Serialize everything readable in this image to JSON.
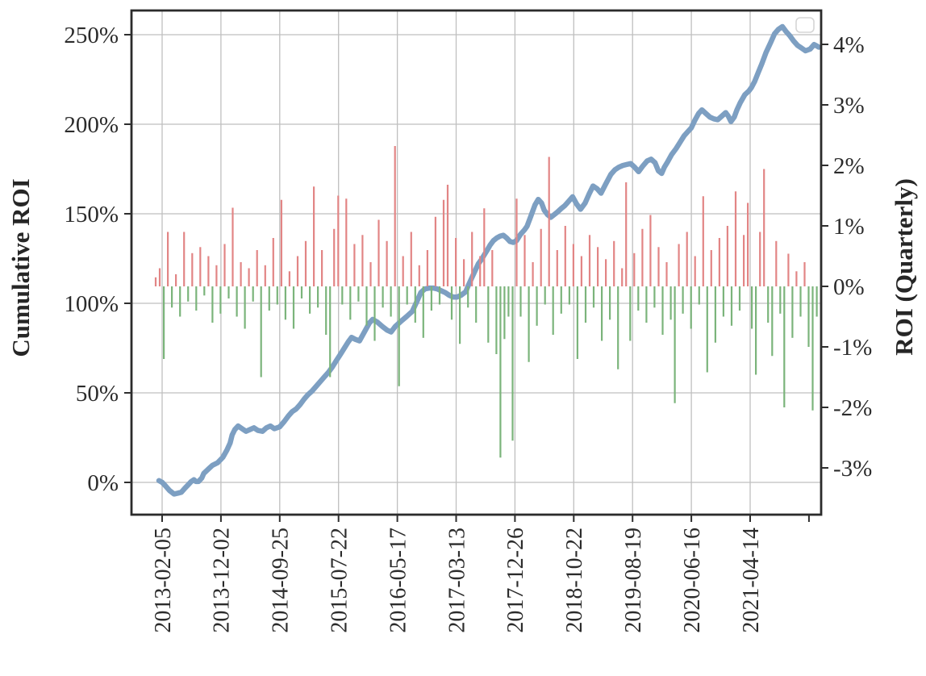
{
  "figure": {
    "background": "#ffffff",
    "left_axis": {
      "title": "Cumulative ROI",
      "tick_labels": [
        "250%",
        "200%",
        "150%",
        "100%",
        "50%",
        "0%"
      ]
    },
    "right_axis": {
      "title": "ROI (Quarterly)",
      "tick_labels": [
        "4%",
        "3%",
        "2%",
        "1%",
        "0%",
        "-1%",
        "-2%",
        "-3%"
      ]
    },
    "x_axis": {
      "tick_labels": [
        "2013-02-05",
        "2013-12-02",
        "2014-09-25",
        "2015-07-22",
        "2016-05-17",
        "2017-03-13",
        "2017-12-26",
        "2018-10-22",
        "2019-08-19",
        "2020-06-16",
        "2021-04-14",
        ""
      ]
    },
    "legend": {
      "empty": true
    }
  },
  "chart_data": {
    "type": "line+bar",
    "title": "",
    "x_tick_labels": [
      "2013-02-05",
      "2013-12-02",
      "2014-09-25",
      "2015-07-22",
      "2016-05-17",
      "2017-03-13",
      "2017-12-26",
      "2018-10-22",
      "2019-08-19",
      "2020-06-16",
      "2021-04-14",
      ""
    ],
    "x_domain_approx": {
      "start": "2013-01-20",
      "end": "2022-03-20"
    },
    "grid": true,
    "legend_position": "upper right (empty box, no entries)",
    "left_axis": {
      "label": "Cumulative ROI",
      "unit": "%",
      "ticks": [
        250,
        200,
        150,
        100,
        50,
        0
      ],
      "ylim_est": [
        -18,
        263
      ]
    },
    "right_axis": {
      "label": "ROI (Quarterly)",
      "unit": "%",
      "ticks": [
        4,
        3,
        2,
        1,
        0,
        -1,
        -2,
        -3
      ],
      "ylim_est": [
        -3.8,
        4.6
      ]
    },
    "series": [
      {
        "name": "Cumulative ROI",
        "type": "line",
        "axis": "left",
        "color": "#7d9fc2",
        "points_t_pct": [
          [
            0,
            1
          ],
          [
            0.005,
            0
          ],
          [
            0.01,
            -2
          ],
          [
            0.016,
            -4.5
          ],
          [
            0.023,
            -6.5
          ],
          [
            0.029,
            -6
          ],
          [
            0.034,
            -5.5
          ],
          [
            0.04,
            -3
          ],
          [
            0.044,
            -1.5
          ],
          [
            0.049,
            0.5
          ],
          [
            0.053,
            1.5
          ],
          [
            0.056,
            0.5
          ],
          [
            0.06,
            0.5
          ],
          [
            0.065,
            2.5
          ],
          [
            0.068,
            5
          ],
          [
            0.075,
            7.5
          ],
          [
            0.081,
            9.5
          ],
          [
            0.089,
            11
          ],
          [
            0.097,
            14
          ],
          [
            0.103,
            18
          ],
          [
            0.108,
            22
          ],
          [
            0.111,
            26.5
          ],
          [
            0.115,
            29.5
          ],
          [
            0.12,
            31.5
          ],
          [
            0.126,
            30
          ],
          [
            0.132,
            28.5
          ],
          [
            0.138,
            29.5
          ],
          [
            0.144,
            30.5
          ],
          [
            0.15,
            29
          ],
          [
            0.157,
            28.5
          ],
          [
            0.163,
            30.5
          ],
          [
            0.169,
            31.5
          ],
          [
            0.175,
            30
          ],
          [
            0.183,
            31
          ],
          [
            0.19,
            34
          ],
          [
            0.196,
            37
          ],
          [
            0.202,
            39.5
          ],
          [
            0.208,
            41
          ],
          [
            0.214,
            43.5
          ],
          [
            0.22,
            46.5
          ],
          [
            0.226,
            49
          ],
          [
            0.232,
            51
          ],
          [
            0.238,
            53.5
          ],
          [
            0.245,
            56.5
          ],
          [
            0.251,
            59
          ],
          [
            0.257,
            61.5
          ],
          [
            0.263,
            64.5
          ],
          [
            0.269,
            68
          ],
          [
            0.275,
            71.5
          ],
          [
            0.281,
            75
          ],
          [
            0.287,
            78.5
          ],
          [
            0.292,
            81
          ],
          [
            0.297,
            80
          ],
          [
            0.304,
            79
          ],
          [
            0.313,
            85
          ],
          [
            0.319,
            89
          ],
          [
            0.324,
            91
          ],
          [
            0.331,
            89.5
          ],
          [
            0.339,
            87
          ],
          [
            0.346,
            85
          ],
          [
            0.352,
            84
          ],
          [
            0.358,
            87
          ],
          [
            0.367,
            90
          ],
          [
            0.375,
            92.5
          ],
          [
            0.384,
            95.5
          ],
          [
            0.391,
            101
          ],
          [
            0.397,
            106
          ],
          [
            0.403,
            108
          ],
          [
            0.41,
            108.5
          ],
          [
            0.416,
            108.5
          ],
          [
            0.422,
            108
          ],
          [
            0.428,
            107
          ],
          [
            0.434,
            106
          ],
          [
            0.44,
            104.5
          ],
          [
            0.446,
            103.5
          ],
          [
            0.452,
            103.5
          ],
          [
            0.458,
            104.5
          ],
          [
            0.465,
            106.5
          ],
          [
            0.469,
            110
          ],
          [
            0.474,
            114
          ],
          [
            0.479,
            118
          ],
          [
            0.484,
            122
          ],
          [
            0.489,
            124.5
          ],
          [
            0.493,
            127
          ],
          [
            0.498,
            130
          ],
          [
            0.502,
            132.5
          ],
          [
            0.507,
            135
          ],
          [
            0.512,
            136.5
          ],
          [
            0.517,
            137.5
          ],
          [
            0.522,
            138
          ],
          [
            0.527,
            136.5
          ],
          [
            0.532,
            134.5
          ],
          [
            0.537,
            134
          ],
          [
            0.542,
            135
          ],
          [
            0.548,
            138.5
          ],
          [
            0.554,
            141
          ],
          [
            0.558,
            143
          ],
          [
            0.564,
            149
          ],
          [
            0.57,
            155
          ],
          [
            0.575,
            158
          ],
          [
            0.58,
            156
          ],
          [
            0.584,
            152
          ],
          [
            0.589,
            149.5
          ],
          [
            0.594,
            148
          ],
          [
            0.599,
            149.5
          ],
          [
            0.604,
            151
          ],
          [
            0.61,
            153
          ],
          [
            0.615,
            154.5
          ],
          [
            0.621,
            157
          ],
          [
            0.627,
            159.5
          ],
          [
            0.633,
            155.5
          ],
          [
            0.639,
            152.5
          ],
          [
            0.646,
            156
          ],
          [
            0.652,
            161
          ],
          [
            0.658,
            165.5
          ],
          [
            0.664,
            164
          ],
          [
            0.67,
            161.5
          ],
          [
            0.677,
            166.5
          ],
          [
            0.685,
            172
          ],
          [
            0.691,
            174.5
          ],
          [
            0.697,
            176
          ],
          [
            0.703,
            177
          ],
          [
            0.709,
            177.5
          ],
          [
            0.715,
            178
          ],
          [
            0.721,
            176
          ],
          [
            0.727,
            173.5
          ],
          [
            0.733,
            176.5
          ],
          [
            0.74,
            179.5
          ],
          [
            0.746,
            180.5
          ],
          [
            0.752,
            178.5
          ],
          [
            0.757,
            174
          ],
          [
            0.762,
            172.5
          ],
          [
            0.766,
            176
          ],
          [
            0.771,
            179
          ],
          [
            0.777,
            183
          ],
          [
            0.784,
            186.5
          ],
          [
            0.79,
            190
          ],
          [
            0.796,
            193.5
          ],
          [
            0.802,
            196
          ],
          [
            0.807,
            198
          ],
          [
            0.812,
            202
          ],
          [
            0.818,
            206
          ],
          [
            0.823,
            208
          ],
          [
            0.829,
            206
          ],
          [
            0.835,
            204
          ],
          [
            0.841,
            203
          ],
          [
            0.847,
            202.5
          ],
          [
            0.853,
            204.5
          ],
          [
            0.859,
            206.5
          ],
          [
            0.863,
            204.5
          ],
          [
            0.867,
            201.5
          ],
          [
            0.872,
            204
          ],
          [
            0.876,
            208
          ],
          [
            0.881,
            212
          ],
          [
            0.888,
            216.5
          ],
          [
            0.894,
            218.5
          ],
          [
            0.898,
            220.5
          ],
          [
            0.903,
            224
          ],
          [
            0.908,
            228.5
          ],
          [
            0.914,
            234
          ],
          [
            0.92,
            240
          ],
          [
            0.927,
            245.5
          ],
          [
            0.933,
            250.5
          ],
          [
            0.939,
            253
          ],
          [
            0.945,
            254.5
          ],
          [
            0.95,
            252
          ],
          [
            0.956,
            249.5
          ],
          [
            0.962,
            246.5
          ],
          [
            0.968,
            244
          ],
          [
            0.974,
            242.5
          ],
          [
            0.98,
            241
          ],
          [
            0.987,
            242
          ],
          [
            0.993,
            244.5
          ],
          [
            0.998,
            243.5
          ],
          [
            1,
            243
          ]
        ]
      },
      {
        "name": "ROI (Quarterly)",
        "type": "bar",
        "axis": "right",
        "color_positive": "#e28585",
        "color_negative": "#7bb47b",
        "values_pct": [
          0.15,
          0.3,
          -1.2,
          0.9,
          -0.35,
          0.2,
          -0.5,
          0.9,
          -0.25,
          0.55,
          -0.4,
          0.65,
          -0.15,
          0.5,
          -0.6,
          0.35,
          -0.45,
          0.7,
          -0.2,
          1.3,
          -0.5,
          0.4,
          -0.7,
          0.3,
          -0.25,
          0.6,
          -1.5,
          0.35,
          -0.4,
          0.8,
          -0.3,
          1.43,
          -0.55,
          0.25,
          -0.7,
          0.5,
          -0.2,
          0.75,
          -0.45,
          1.65,
          -0.35,
          0.6,
          -0.8,
          -1.5,
          0.95,
          1.5,
          -0.3,
          1.45,
          -0.55,
          0.7,
          -0.25,
          0.85,
          -0.65,
          0.4,
          -0.9,
          1.1,
          -0.35,
          0.75,
          -0.5,
          2.32,
          -1.65,
          0.5,
          -0.3,
          0.9,
          -0.6,
          0.35,
          -0.85,
          0.6,
          -0.4,
          1.15,
          -0.3,
          1.43,
          1.68,
          -0.55,
          0.8,
          -0.95,
          0.45,
          -0.35,
          0.9,
          -0.6,
          0.5,
          1.29,
          -0.93,
          0.6,
          -1.12,
          -2.83,
          -0.87,
          -0.5,
          -2.55,
          1.45,
          -0.5,
          0.85,
          -1.25,
          0.4,
          -0.65,
          0.95,
          -0.3,
          2.14,
          -0.8,
          0.6,
          -0.45,
          1.0,
          -0.3,
          0.7,
          -1.2,
          0.5,
          -0.6,
          0.85,
          -0.35,
          0.65,
          -0.9,
          0.45,
          -0.55,
          0.75,
          -1.37,
          0.3,
          1.72,
          -0.9,
          0.55,
          -0.4,
          0.95,
          -0.6,
          1.18,
          -0.35,
          0.65,
          -0.8,
          0.4,
          -0.55,
          -1.93,
          0.7,
          -0.45,
          0.9,
          -0.7,
          0.5,
          -0.3,
          1.49,
          -1.42,
          0.6,
          -0.93,
          0.8,
          -0.5,
          1.0,
          -0.65,
          1.57,
          -0.4,
          0.85,
          1.38,
          -0.7,
          -1.46,
          0.9,
          1.94,
          -0.6,
          -1.15,
          0.75,
          -0.45,
          -2.0,
          0.54,
          -0.85,
          0.25,
          -0.5,
          0.4,
          -1.0,
          -2.05,
          -0.5
        ]
      }
    ]
  }
}
